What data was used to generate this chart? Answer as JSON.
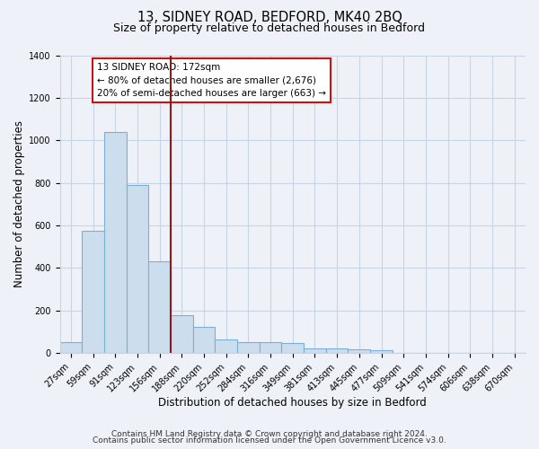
{
  "title": "13, SIDNEY ROAD, BEDFORD, MK40 2BQ",
  "subtitle": "Size of property relative to detached houses in Bedford",
  "xlabel": "Distribution of detached houses by size in Bedford",
  "ylabel": "Number of detached properties",
  "bar_labels": [
    "27sqm",
    "59sqm",
    "91sqm",
    "123sqm",
    "156sqm",
    "188sqm",
    "220sqm",
    "252sqm",
    "284sqm",
    "316sqm",
    "349sqm",
    "381sqm",
    "413sqm",
    "445sqm",
    "477sqm",
    "509sqm",
    "541sqm",
    "574sqm",
    "606sqm",
    "638sqm",
    "670sqm"
  ],
  "bar_values": [
    50,
    575,
    1040,
    790,
    430,
    178,
    125,
    65,
    52,
    52,
    47,
    22,
    20,
    17,
    13,
    0,
    0,
    0,
    0,
    0,
    0
  ],
  "bar_color": "#ccdded",
  "bar_edge_color": "#7ab0d4",
  "ylim": [
    0,
    1400
  ],
  "yticks": [
    0,
    200,
    400,
    600,
    800,
    1000,
    1200,
    1400
  ],
  "vline_x": 4.5,
  "vline_color": "#8b1a1a",
  "annotation_title": "13 SIDNEY ROAD: 172sqm",
  "annotation_line1": "← 80% of detached houses are smaller (2,676)",
  "annotation_line2": "20% of semi-detached houses are larger (663) →",
  "footer_line1": "Contains HM Land Registry data © Crown copyright and database right 2024.",
  "footer_line2": "Contains public sector information licensed under the Open Government Licence v3.0.",
  "bg_color": "#eef2f8",
  "plot_bg_color": "#eef2f8",
  "grid_color": "#c8d4e4",
  "title_fontsize": 10.5,
  "subtitle_fontsize": 9,
  "axis_label_fontsize": 8.5,
  "tick_fontsize": 7,
  "footer_fontsize": 6.5
}
